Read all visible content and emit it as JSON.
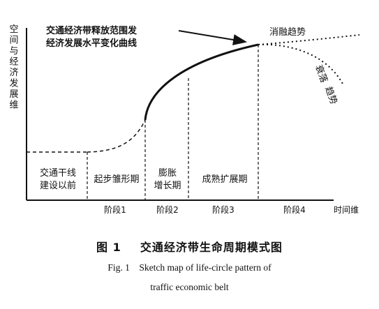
{
  "axes": {
    "y_label": "空间与经济发展维",
    "x_label": "时间维"
  },
  "annotations": {
    "peak_line1": "交通经济带释放范围发",
    "peak_line2": "经济发展水平变化曲线",
    "diffusion_trend": "消融趋势",
    "decline_trend_1": "衰落",
    "decline_trend_2": "趋势"
  },
  "periods": [
    {
      "line1": "交通干线",
      "line2": "建设以前"
    },
    {
      "line1": "起步雏形期",
      "line2": ""
    },
    {
      "line1": "膨胀",
      "line2": "增长期"
    },
    {
      "line1": "成熟扩展期",
      "line2": ""
    }
  ],
  "stages": [
    "阶段1",
    "阶段2",
    "阶段3",
    "阶段4"
  ],
  "caption": {
    "cn_label": "图 1",
    "cn_title": "交通经济带生命周期模式图",
    "en_line1": "Fig. 1    Sketch map of life-circle pattern of",
    "en_line2": "traffic economic belt"
  }
}
